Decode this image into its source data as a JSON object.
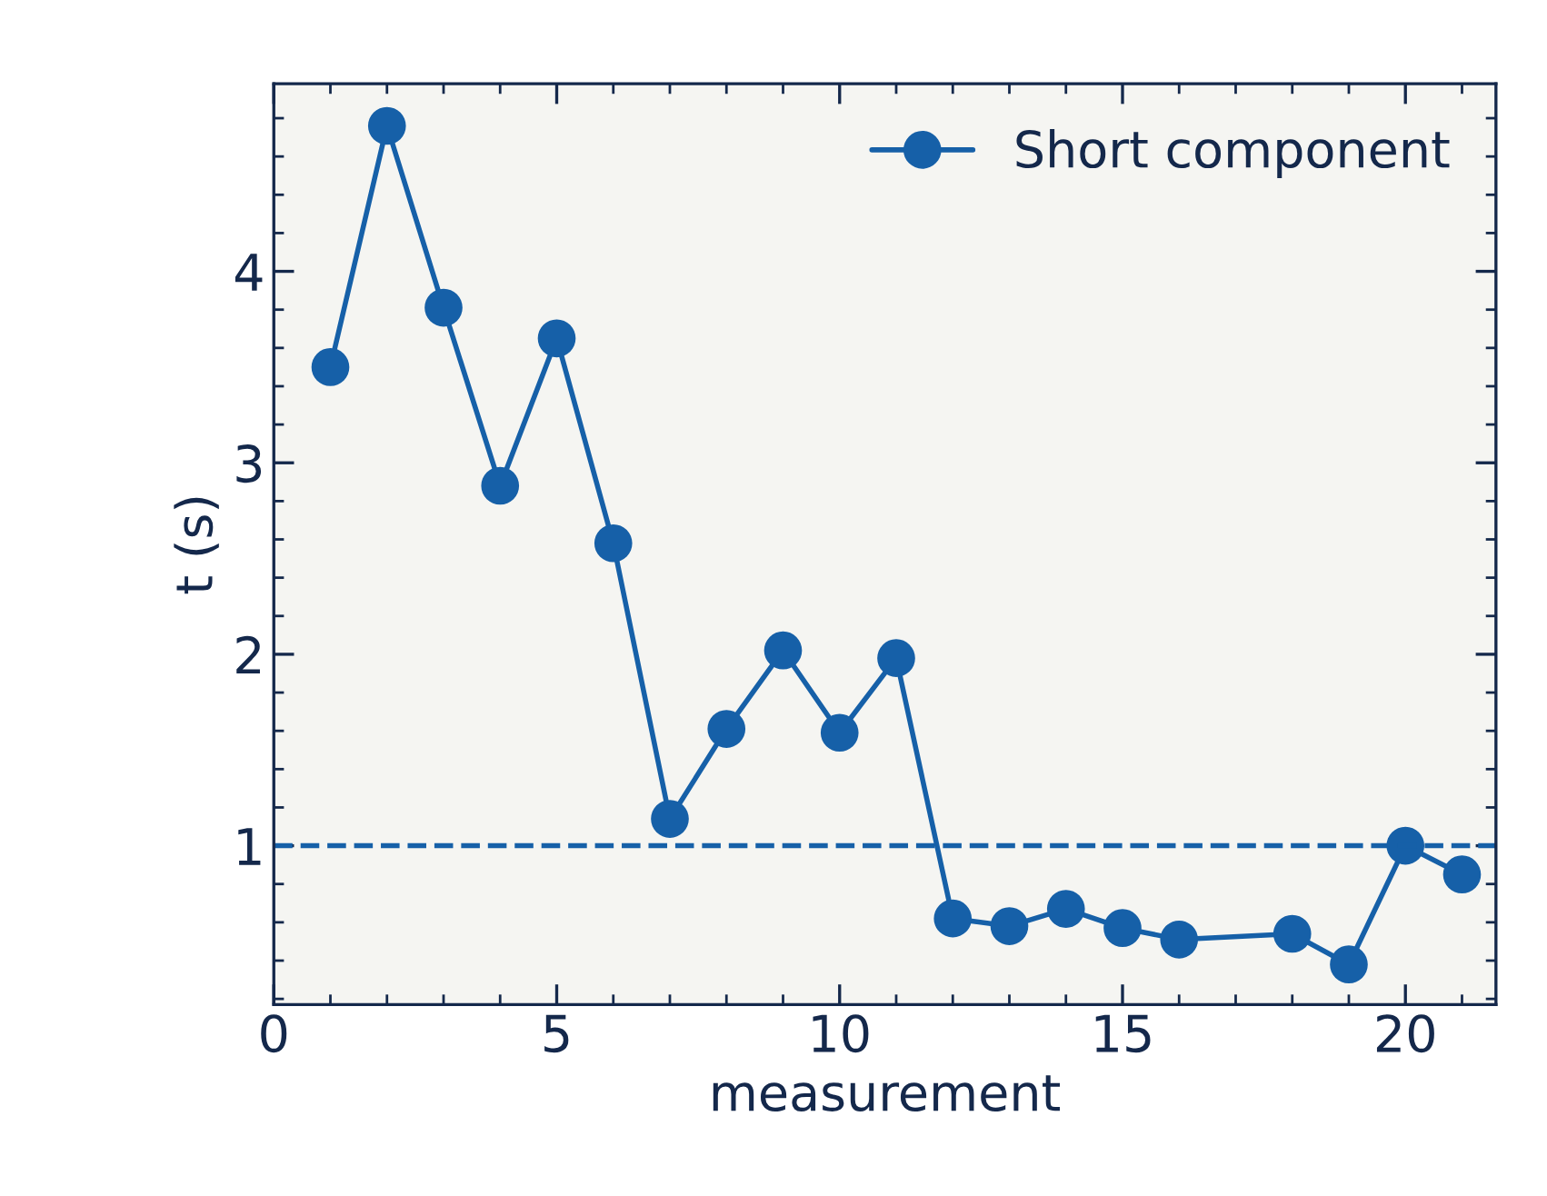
{
  "chart_data": {
    "type": "line",
    "xlabel": "measurement",
    "ylabel": "t (s)",
    "x": [
      1,
      2,
      3,
      4,
      5,
      6,
      7,
      8,
      9,
      10,
      11,
      12,
      13,
      14,
      15,
      16,
      18,
      19,
      20,
      21
    ],
    "series": [
      {
        "name": "Short component",
        "color": "#1660a8",
        "values": [
          3.5,
          4.76,
          3.81,
          2.88,
          3.65,
          2.58,
          1.14,
          1.61,
          2.02,
          1.59,
          1.98,
          0.62,
          0.58,
          0.67,
          0.57,
          0.51,
          0.54,
          0.38,
          1.0,
          0.85
        ]
      }
    ],
    "xlim": [
      0,
      21.6
    ],
    "xticks": [
      0,
      5,
      10,
      15,
      20
    ],
    "ylim": [
      0.17,
      4.98
    ],
    "yticks": [
      1,
      2,
      3,
      4
    ],
    "ref_lines": [
      {
        "axis": "y",
        "value": 1,
        "color": "#1660a8",
        "line_style": "dashed"
      }
    ],
    "marker": "circle",
    "line_style": "solid",
    "legend": "top right",
    "grid": false
  }
}
